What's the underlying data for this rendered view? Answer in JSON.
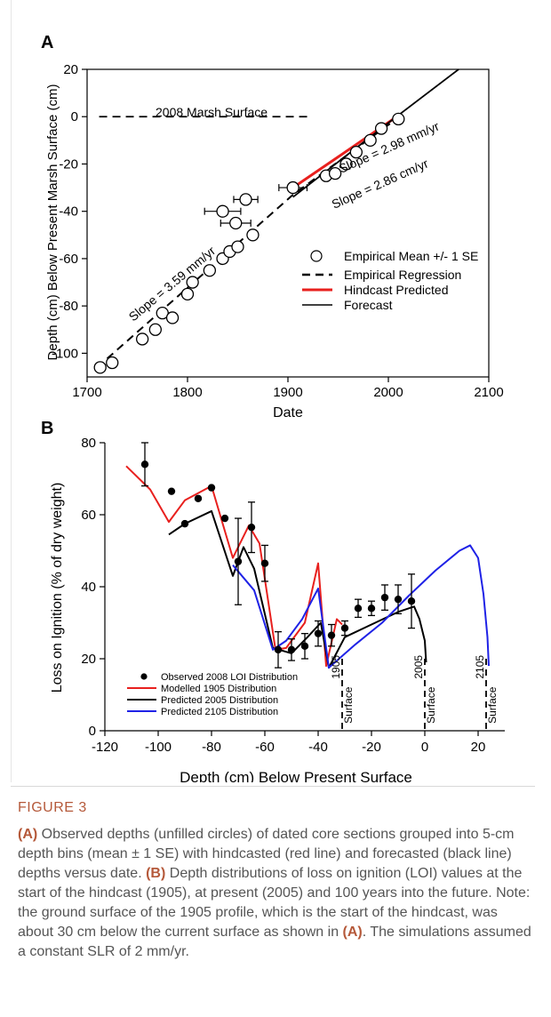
{
  "panel_a": {
    "label": "A",
    "ylabel": "Depth (cm) Below Present Marsh Surface (cm)",
    "xlabel": "Date",
    "annotations": {
      "marsh_surface": "2008 Marsh Surface",
      "slope_359": "Slope = 3.59 mm/yr",
      "slope_298": "Slope = 2.98 mm/yr",
      "slope_286": "Slope = 2.86 cm/yr"
    },
    "legend": [
      "Empirical Mean +/- 1 SE",
      "Empirical Regression",
      "Hindcast Predicted",
      "Forecast"
    ]
  },
  "panel_b": {
    "label": "B",
    "ylabel": "Loss on Ignition (% of dry weight)",
    "xlabel": "Depth (cm) Below Present Surface",
    "surface_word": "Surface",
    "surfaces": [
      "1905",
      "2005",
      "2105"
    ],
    "legend": [
      "Observed 2008 LOI Distribution",
      "Modelled 1905 Distribution",
      "Predicted 2005 Distribution",
      "Predicted 2105 Distribution"
    ]
  },
  "colors": {
    "red": "#e8201e",
    "black": "#000000",
    "blue": "#1f22e6"
  },
  "caption": {
    "label": "FIGURE 3",
    "ref_a": "(A)",
    "text_a": " Observed depths (unfilled circles) of dated core sections grouped into 5-cm depth bins (mean ± 1 SE) with hindcasted (red line) and forecasted (black line) depths versus date. ",
    "ref_b": "(B)",
    "text_b": " Depth distributions of loss on ignition (LOI) values at the start of the hindcast (1905), at present (2005) and 100 years into the future. Note: the ground surface of the 1905 profile, which is the start of the hindcast, was about 30 cm below the current surface as shown in ",
    "ref_a2": "(A)",
    "text_c": ". The simulations assumed a constant SLR of 2 mm/yr."
  },
  "chart_data": [
    {
      "type": "scatter",
      "panel": "A",
      "xlabel": "Date",
      "ylabel": "Depth (cm) Below Present Marsh Surface (cm)",
      "xlim": [
        1700,
        2100
      ],
      "ylim": [
        -110,
        20
      ],
      "xticks": [
        1700,
        1800,
        1900,
        2000,
        2100
      ],
      "yticks": [
        -100,
        -80,
        -60,
        -40,
        -20,
        0,
        20
      ],
      "legend_position": "center-right",
      "points": [
        {
          "x": 1713,
          "y": -106
        },
        {
          "x": 1725,
          "y": -104
        },
        {
          "x": 1755,
          "y": -94
        },
        {
          "x": 1768,
          "y": -90
        },
        {
          "x": 1775,
          "y": -83
        },
        {
          "x": 1785,
          "y": -85
        },
        {
          "x": 1800,
          "y": -75
        },
        {
          "x": 1805,
          "y": -70
        },
        {
          "x": 1822,
          "y": -65
        },
        {
          "x": 1835,
          "y": -60
        },
        {
          "x": 1842,
          "y": -57
        },
        {
          "x": 1850,
          "y": -55
        },
        {
          "x": 1865,
          "y": -50
        },
        {
          "x": 1835,
          "y": -40,
          "xerr": 18
        },
        {
          "x": 1848,
          "y": -45,
          "xerr": 15
        },
        {
          "x": 1858,
          "y": -35,
          "xerr": 12
        },
        {
          "x": 1905,
          "y": -30,
          "xerr": 14
        },
        {
          "x": 1938,
          "y": -25
        },
        {
          "x": 1947,
          "y": -24
        },
        {
          "x": 1958,
          "y": -20
        },
        {
          "x": 1968,
          "y": -15
        },
        {
          "x": 1982,
          "y": -10
        },
        {
          "x": 1993,
          "y": -5
        },
        {
          "x": 2010,
          "y": -1
        }
      ],
      "series": [
        {
          "name": "Empirical Mean +/- 1 SE",
          "kind": "points"
        },
        {
          "name": "Empirical Regression",
          "kind": "dashed",
          "x": [
            1710,
            1905,
            2008
          ],
          "y": [
            -106,
            -33,
            -1
          ]
        },
        {
          "name": "Hindcast Predicted",
          "kind": "line",
          "color": "#e8201e",
          "x": [
            1905,
            1950,
            2005
          ],
          "y": [
            -30,
            -17,
            -1
          ]
        },
        {
          "name": "Forecast",
          "kind": "line",
          "color": "#000000",
          "x": [
            1905,
            2005,
            2070
          ],
          "y": [
            -34,
            -1,
            20
          ]
        }
      ],
      "marsh_surface_line": {
        "x": [
          1712,
          1922
        ],
        "y": [
          0,
          0
        ]
      }
    },
    {
      "type": "line",
      "panel": "B",
      "xlabel": "Depth (cm) Below Present Surface",
      "ylabel": "Loss on Ignition (% of dry weight)",
      "xlim": [
        -120,
        30
      ],
      "ylim": [
        0,
        80
      ],
      "xticks": [
        -120,
        -100,
        -80,
        -60,
        -40,
        -20,
        0,
        20
      ],
      "yticks": [
        0,
        20,
        40,
        60,
        80
      ],
      "legend_position": "bottom-left",
      "observed": [
        {
          "x": -105,
          "y": 74,
          "yerr": 6
        },
        {
          "x": -95,
          "y": 66.5
        },
        {
          "x": -90,
          "y": 57.5
        },
        {
          "x": -85,
          "y": 64.5
        },
        {
          "x": -80,
          "y": 67.5
        },
        {
          "x": -75,
          "y": 59
        },
        {
          "x": -70,
          "y": 47,
          "yerr": 12
        },
        {
          "x": -65,
          "y": 56.5,
          "yerr": 7
        },
        {
          "x": -60,
          "y": 46.5,
          "yerr": 5
        },
        {
          "x": -55,
          "y": 22.5,
          "yerr": 5
        },
        {
          "x": -50,
          "y": 22.5,
          "yerr": 3
        },
        {
          "x": -45,
          "y": 23.5,
          "yerr": 3.5
        },
        {
          "x": -40,
          "y": 27,
          "yerr": 3.5
        },
        {
          "x": -35,
          "y": 26.5,
          "yerr": 3
        },
        {
          "x": -30,
          "y": 28.5,
          "yerr": 2
        },
        {
          "x": -25,
          "y": 34,
          "yerr": 2.5
        },
        {
          "x": -20,
          "y": 34,
          "yerr": 2
        },
        {
          "x": -15,
          "y": 37,
          "yerr": 3.5
        },
        {
          "x": -10,
          "y": 36.5,
          "yerr": 4
        },
        {
          "x": -5,
          "y": 36,
          "yerr": 7.5
        }
      ],
      "series": [
        {
          "name": "Modelled 1905 Distribution",
          "color": "#e8201e",
          "x": [
            -112,
            -103,
            -96,
            -90,
            -80,
            -72,
            -66,
            -62,
            -56,
            -52,
            -45,
            -40,
            -37,
            -33,
            -31
          ],
          "y": [
            73.5,
            67,
            58,
            64,
            68,
            48,
            57,
            52,
            22.5,
            23,
            30,
            46.5,
            18,
            31,
            29.5
          ]
        },
        {
          "name": "Predicted 2005 Distribution",
          "color": "#000000",
          "x": [
            -96,
            -90,
            -80,
            -72,
            -68,
            -64,
            -57,
            -50,
            -44,
            -39,
            -36,
            -30,
            -20,
            -10,
            -4,
            -2,
            0,
            0.5
          ],
          "y": [
            54.5,
            57.5,
            61,
            43,
            51,
            45,
            23,
            21.5,
            26,
            30,
            17.5,
            26,
            29.5,
            33,
            34.5,
            31,
            25,
            19
          ]
        },
        {
          "name": "Predicted 2105 Distribution",
          "color": "#1f22e6",
          "x": [
            -72,
            -64,
            -57,
            -52,
            -46,
            -40,
            -36,
            -26,
            -16,
            -6,
            4,
            13,
            17,
            20,
            22,
            23.5,
            24
          ],
          "y": [
            46,
            39,
            22.5,
            25,
            31,
            39.5,
            17.5,
            24,
            30,
            37.5,
            44.5,
            50,
            51.5,
            48,
            38,
            26,
            18
          ]
        }
      ],
      "surface_markers": [
        {
          "label": "1905",
          "x": -31
        },
        {
          "label": "2005",
          "x": 0
        },
        {
          "label": "2105",
          "x": 23
        }
      ]
    }
  ]
}
